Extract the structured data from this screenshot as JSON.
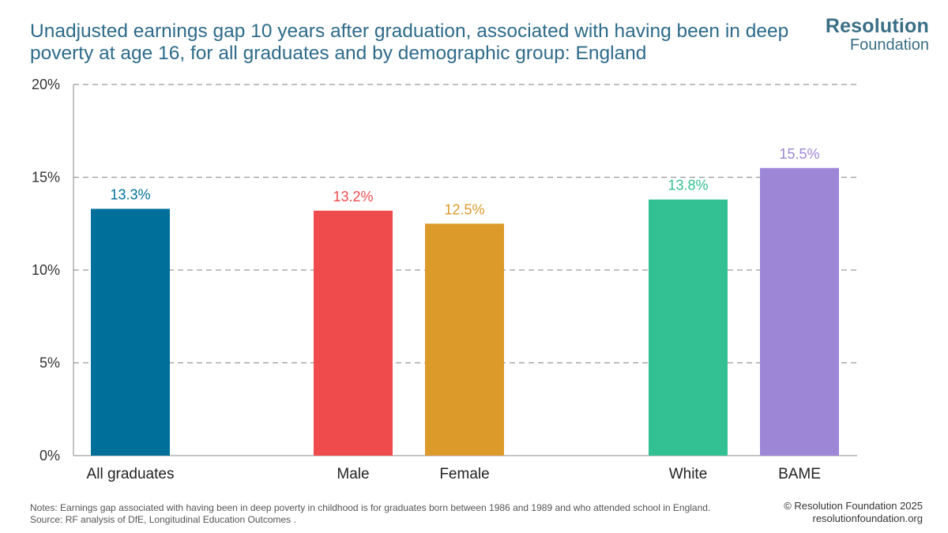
{
  "title": "Unadjusted earnings gap 10 years after graduation, associated with having been in deep poverty at age 16, for all graduates and by demographic group: England",
  "logo": {
    "line1": "Resolution",
    "line2": "Foundation"
  },
  "notes": {
    "line1": "Notes: Earnings gap associated with having been in deep poverty in childhood is for graduates born between 1986 and 1989 and who attended school in England.",
    "line2": "Source: RF analysis of DfE, Longitudinal Education Outcomes ."
  },
  "credits": {
    "copyright": "© Resolution Foundation 2025",
    "website": "resolutionfoundation.org"
  },
  "chart_data": {
    "type": "bar",
    "categories": [
      "All graduates",
      "Male",
      "Female",
      "White",
      "BAME"
    ],
    "values": [
      13.3,
      13.2,
      12.5,
      13.8,
      15.5
    ],
    "data_labels": [
      "13.3%",
      "13.2%",
      "12.5%",
      "13.8%",
      "15.5%"
    ],
    "colors": [
      "#00709b",
      "#ef4b4d",
      "#dc9a2a",
      "#33c092",
      "#9d86d6"
    ],
    "ylim": [
      0,
      20
    ],
    "yticks": [
      0,
      5,
      10,
      15,
      20
    ],
    "ytick_labels": [
      "0%",
      "5%",
      "10%",
      "15%",
      "20%"
    ],
    "grid": true
  }
}
